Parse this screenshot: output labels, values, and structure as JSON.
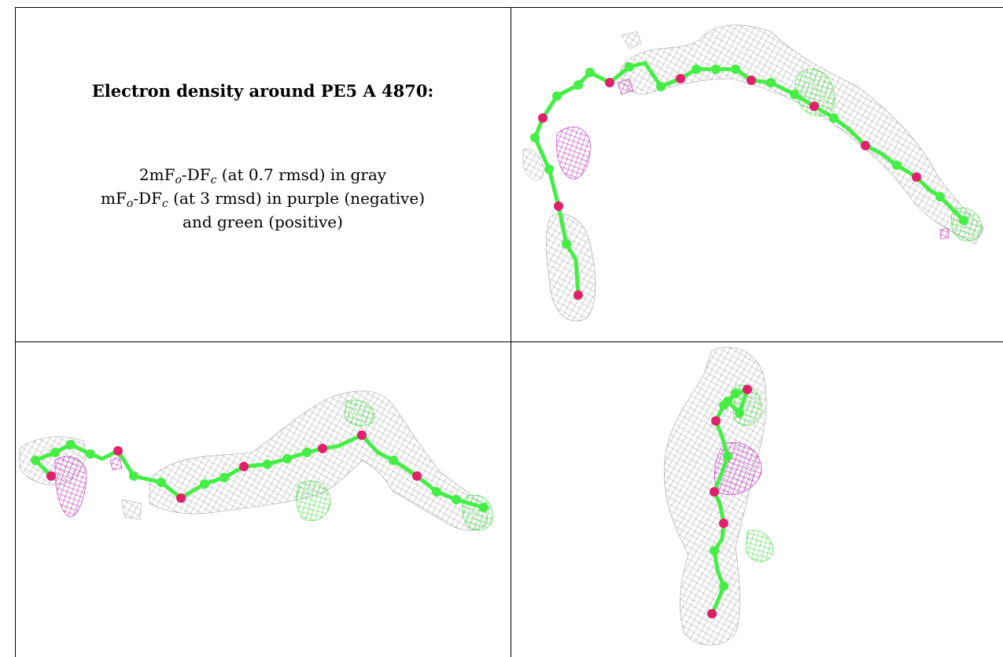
{
  "caption": {
    "title": "Electron density around PE5 A 4870:",
    "line1": {
      "pre": "2mF",
      "sub1": "o",
      "mid": "-DF",
      "sub2": "c",
      "post": " (at 0.7 rmsd) in gray"
    },
    "line2": {
      "pre": "mF",
      "sub1": "o",
      "mid": "-DF",
      "sub2": "c",
      "post": " (at 3 rmsd) in purple (negative)"
    },
    "line3": "and green (positive)"
  },
  "colors": {
    "mesh_gray": "#9a9a9a",
    "negative_purple": "#c020c0",
    "positive_green": "#33dd33",
    "carbon_green": "#44ee44",
    "oxygen_pink": "#e0206a"
  },
  "views": [
    {
      "name": "view-top-right"
    },
    {
      "name": "view-bottom-left"
    },
    {
      "name": "view-bottom-right"
    }
  ]
}
